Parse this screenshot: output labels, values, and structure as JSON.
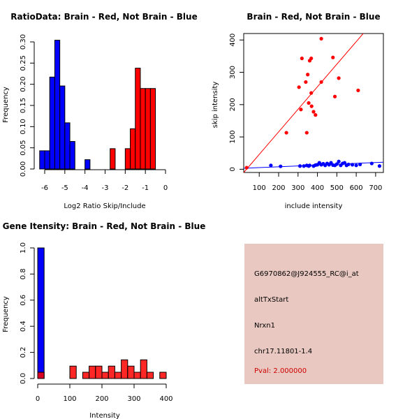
{
  "colors": {
    "red": "#ff0000",
    "blue": "#0000ff",
    "info_bg": "#e8c8c0",
    "pval": "#cc0000"
  },
  "chart_data": [
    {
      "type": "bar",
      "title": "RatioData: Brain - Red, Not Brain - Blue",
      "xlabel": "Log2 Ratio Skip/Include",
      "ylabel": "Frequency",
      "xlim": [
        -6,
        0
      ],
      "ylim": [
        0,
        0.3
      ],
      "xticks": [
        -6,
        -5,
        -4,
        -3,
        -2,
        -1,
        0
      ],
      "yticks": [
        0.0,
        0.05,
        0.1,
        0.15,
        0.2,
        0.25,
        0.3
      ],
      "ytick_labels": [
        "0.00",
        "0.05",
        "0.10",
        "0.15",
        "0.20",
        "0.25",
        "0.30"
      ],
      "bin_width": 0.25,
      "series": [
        {
          "name": "Not Brain",
          "color": "blue",
          "bins": [
            [
              -6.25,
              0.043
            ],
            [
              -6.0,
              0.043
            ],
            [
              -5.75,
              0.217
            ],
            [
              -5.5,
              0.304
            ],
            [
              -5.25,
              0.196
            ],
            [
              -5.0,
              0.109
            ],
            [
              -4.75,
              0.065
            ],
            [
              -4.0,
              0.022
            ]
          ]
        },
        {
          "name": "Brain",
          "color": "red",
          "bins": [
            [
              -2.75,
              0.048
            ],
            [
              -2.0,
              0.048
            ],
            [
              -1.75,
              0.095
            ],
            [
              -1.5,
              0.238
            ],
            [
              -1.25,
              0.19
            ],
            [
              -1.0,
              0.19
            ],
            [
              -0.75,
              0.19
            ]
          ]
        }
      ]
    },
    {
      "type": "scatter",
      "title": "Brain - Red, Not Brain - Blue",
      "xlabel": "include intensity",
      "ylabel": "skip intensity",
      "xlim": [
        20,
        740
      ],
      "ylim": [
        -10,
        420
      ],
      "xticks": [
        100,
        200,
        300,
        400,
        500,
        600,
        700
      ],
      "yticks": [
        0,
        100,
        200,
        300,
        400
      ],
      "series": [
        {
          "name": "Brain",
          "color": "red",
          "points": [
            [
              35,
              5
            ],
            [
              240,
              113
            ],
            [
              305,
              254
            ],
            [
              315,
              185
            ],
            [
              320,
              343
            ],
            [
              340,
              270
            ],
            [
              345,
              113
            ],
            [
              350,
              293
            ],
            [
              355,
              205
            ],
            [
              360,
              336
            ],
            [
              368,
              343
            ],
            [
              368,
              236
            ],
            [
              370,
              195
            ],
            [
              380,
              178
            ],
            [
              390,
              168
            ],
            [
              420,
              404
            ],
            [
              420,
              270
            ],
            [
              480,
              346
            ],
            [
              490,
              225
            ],
            [
              510,
              282
            ],
            [
              610,
              244
            ]
          ],
          "fit": [
            [
              20,
              -10
            ],
            [
              636,
              420
            ]
          ]
        },
        {
          "name": "Not Brain",
          "color": "blue",
          "points": [
            [
              160,
              12
            ],
            [
              210,
              9
            ],
            [
              310,
              10
            ],
            [
              330,
              10
            ],
            [
              345,
              12
            ],
            [
              355,
              10
            ],
            [
              360,
              12
            ],
            [
              380,
              10
            ],
            [
              390,
              13
            ],
            [
              400,
              14
            ],
            [
              410,
              20
            ],
            [
              420,
              14
            ],
            [
              430,
              17
            ],
            [
              440,
              12
            ],
            [
              450,
              18
            ],
            [
              460,
              14
            ],
            [
              470,
              20
            ],
            [
              480,
              13
            ],
            [
              490,
              12
            ],
            [
              500,
              16
            ],
            [
              510,
              24
            ],
            [
              520,
              12
            ],
            [
              530,
              18
            ],
            [
              540,
              20
            ],
            [
              550,
              12
            ],
            [
              560,
              15
            ],
            [
              580,
              14
            ],
            [
              600,
              12
            ],
            [
              620,
              15
            ],
            [
              680,
              18
            ],
            [
              720,
              10
            ]
          ],
          "fit": [
            [
              20,
              3
            ],
            [
              740,
              22
            ]
          ]
        }
      ]
    },
    {
      "type": "bar",
      "title": "Gene Itensity: Brain - Red, Not Brain - Blue",
      "xlabel": "Intensity",
      "ylabel": "Frequency",
      "xlim": [
        0,
        400
      ],
      "ylim": [
        0,
        1.0
      ],
      "xticks": [
        0,
        100,
        200,
        300,
        400
      ],
      "yticks": [
        0.0,
        0.2,
        0.4,
        0.6,
        0.8,
        1.0
      ],
      "ytick_labels": [
        "0.0",
        "0.2",
        "0.4",
        "0.6",
        "0.8",
        "1.0"
      ],
      "bin_width": 20,
      "series": [
        {
          "name": "Not Brain",
          "color": "blue",
          "bins": [
            [
              0,
              1.0
            ]
          ]
        },
        {
          "name": "Brain",
          "color": "red",
          "bins": [
            [
              0,
              0.048
            ],
            [
              100,
              0.095
            ],
            [
              140,
              0.048
            ],
            [
              160,
              0.095
            ],
            [
              180,
              0.095
            ],
            [
              200,
              0.048
            ],
            [
              220,
              0.095
            ],
            [
              240,
              0.048
            ],
            [
              260,
              0.143
            ],
            [
              280,
              0.095
            ],
            [
              300,
              0.048
            ],
            [
              320,
              0.143
            ],
            [
              340,
              0.048
            ],
            [
              380,
              0.048
            ]
          ]
        }
      ]
    }
  ],
  "info": {
    "probe": "G6970862@J924555_RC@i_at",
    "event": "altTxStart",
    "gene": "Nrxn1",
    "location": "chr17.11801-1.4",
    "pval": "Pval: 2.000000"
  }
}
